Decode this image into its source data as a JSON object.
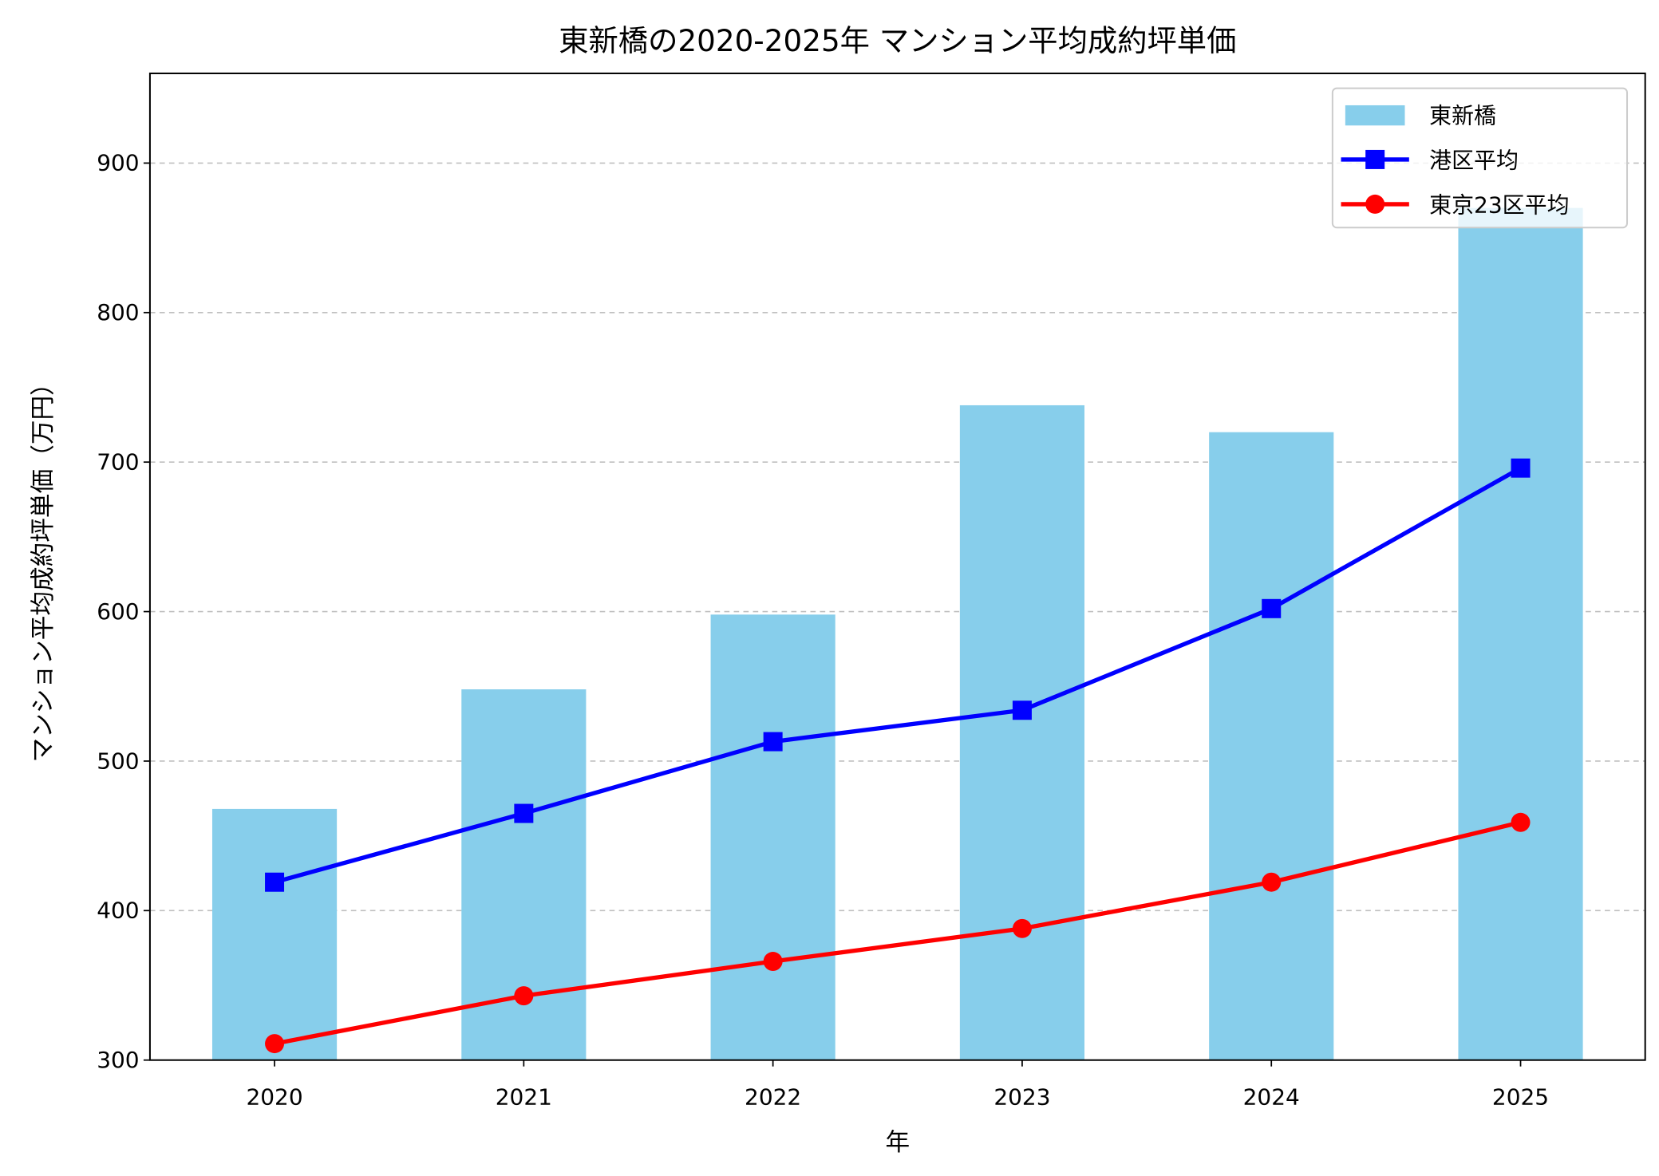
{
  "chart_data": {
    "type": "bar+line",
    "title": "東新橋の2020-2025年 マンション平均成約坪単価",
    "xlabel": "年",
    "ylabel": "マンション平均成約坪単価（万円）",
    "categories": [
      "2020",
      "2021",
      "2022",
      "2023",
      "2024",
      "2025"
    ],
    "ylim": [
      300,
      960
    ],
    "yticks": [
      300,
      400,
      500,
      600,
      700,
      800,
      900
    ],
    "grid": "y dashed",
    "legend_position": "top-right",
    "series": [
      {
        "name": "東新橋",
        "kind": "bar",
        "color": "#87CEEB",
        "values": [
          468,
          548,
          598,
          738,
          720,
          870
        ]
      },
      {
        "name": "港区平均",
        "kind": "line",
        "marker": "square",
        "color": "#0000FF",
        "values": [
          419,
          465,
          513,
          534,
          602,
          696
        ]
      },
      {
        "name": "東京23区平均",
        "kind": "line",
        "marker": "circle",
        "color": "#FF0000",
        "values": [
          311,
          343,
          366,
          388,
          419,
          459
        ]
      }
    ]
  }
}
